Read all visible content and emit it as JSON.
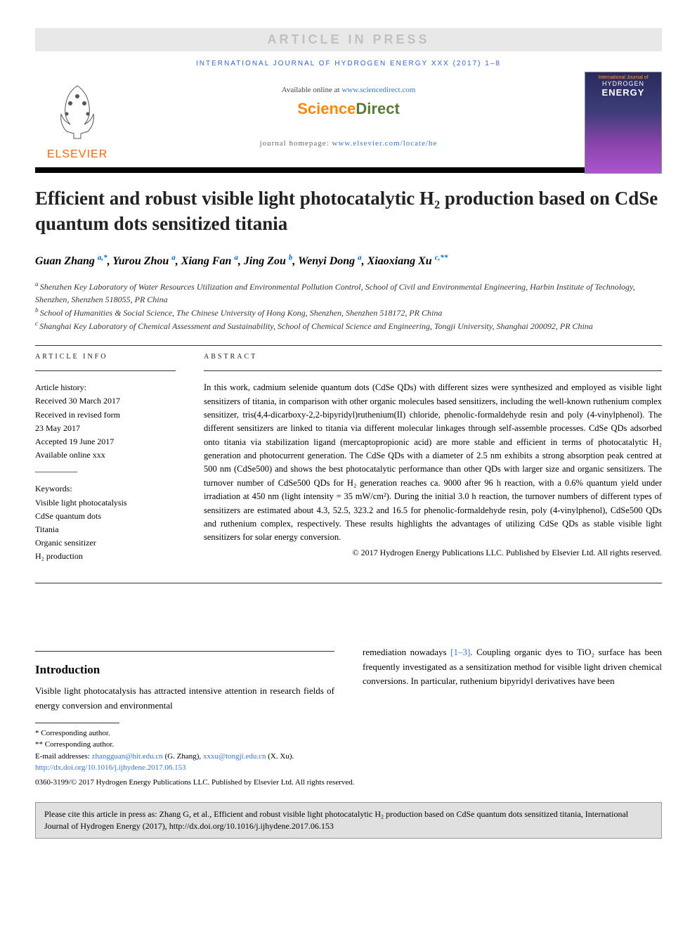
{
  "banner": {
    "text": "ARTICLE IN PRESS"
  },
  "journal_header": "INTERNATIONAL JOURNAL OF HYDROGEN ENERGY XXX (2017) 1–8",
  "elsevier": {
    "name": "ELSEVIER"
  },
  "cover": {
    "line1": "International Journal of",
    "line2": "HYDROGEN",
    "line3": "ENERGY"
  },
  "available": {
    "prefix": "Available online at ",
    "url": "www.sciencedirect.com"
  },
  "sciencedirect": {
    "science": "Science",
    "direct": "Direct"
  },
  "homepage": {
    "prefix": "journal homepage: ",
    "url": "www.elsevier.com/locate/he"
  },
  "title": "Efficient and robust visible light photocatalytic H₂ production based on CdSe quantum dots sensitized titania",
  "authors": [
    {
      "name": "Guan Zhang",
      "sup": "a,*"
    },
    {
      "name": "Yurou Zhou",
      "sup": "a"
    },
    {
      "name": "Xiang Fan",
      "sup": "a"
    },
    {
      "name": "Jing Zou",
      "sup": "b"
    },
    {
      "name": "Wenyi Dong",
      "sup": "a"
    },
    {
      "name": "Xiaoxiang Xu",
      "sup": "c,**"
    }
  ],
  "affiliations": [
    {
      "sup": "a",
      "text": "Shenzhen Key Laboratory of Water Resources Utilization and Environmental Pollution Control, School of Civil and Environmental Engineering, Harbin Institute of Technology, Shenzhen, Shenzhen 518055, PR China"
    },
    {
      "sup": "b",
      "text": "School of Humanities & Social Science, The Chinese University of Hong Kong, Shenzhen, Shenzhen 518172, PR China"
    },
    {
      "sup": "c",
      "text": "Shanghai Key Laboratory of Chemical Assessment and Sustainability, School of Chemical Science and Engineering, Tongji University, Shanghai 200092, PR China"
    }
  ],
  "info_label": "ARTICLE INFO",
  "abstract_label": "ABSTRACT",
  "history": {
    "heading": "Article history:",
    "received": "Received 30 March 2017",
    "revised": "Received in revised form",
    "revised_date": "23 May 2017",
    "accepted": "Accepted 19 June 2017",
    "online": "Available online xxx"
  },
  "keywords": {
    "heading": "Keywords:",
    "items": [
      "Visible light photocatalysis",
      "CdSe quantum dots",
      "Titania",
      "Organic sensitizer",
      "H₂ production"
    ]
  },
  "abstract": "In this work, cadmium selenide quantum dots (CdSe QDs) with different sizes were synthesized and employed as visible light sensitizers of titania, in comparison with other organic molecules based sensitizers, including the well-known ruthenium complex sensitizer, tris(4,4-dicarboxy-2,2-bipyridyl)ruthenium(II) chloride, phenolic-formaldehyde resin and poly (4-vinylphenol). The different sensitizers are linked to titania via different molecular linkages through self-assemble processes. CdSe QDs adsorbed onto titania via stabilization ligand (mercaptopropionic acid) are more stable and efficient in terms of photocatalytic H₂ generation and photocurrent generation. The CdSe QDs with a diameter of 2.5 nm exhibits a strong absorption peak centred at 500 nm (CdSe500) and shows the best photocatalytic performance than other QDs with larger size and organic sensitizers. The turnover number of CdSe500 QDs for H₂ generation reaches ca. 9000 after 96 h reaction, with a 0.6% quantum yield under irradiation at 450 nm (light intensity = 35 mW/cm²). During the initial 3.0 h reaction, the turnover numbers of different types of sensitizers are estimated about 4.3, 52.5, 323.2 and 16.5 for phenolic-formaldehyde resin, poly (4-vinylphenol), CdSe500 QDs and ruthenium complex, respectively. These results highlights the advantages of utilizing CdSe QDs as stable visible light sensitizers for solar energy conversion.",
  "copyright": "© 2017 Hydrogen Energy Publications LLC. Published by Elsevier Ltd. All rights reserved.",
  "intro_heading": "Introduction",
  "intro_left": "Visible light photocatalysis has attracted intensive attention in research fields of energy conversion and environmental",
  "intro_right": "remediation nowadays [1–3]. Coupling organic dyes to TiO₂ surface has been frequently investigated as a sensitization method for visible light driven chemical conversions. In particular, ruthenium bipyridyl derivatives have been",
  "footnotes": {
    "corr1": "* Corresponding author.",
    "corr2": "** Corresponding author.",
    "email_label": "E-mail addresses: ",
    "email1": "zhangguan@hit.edu.cn",
    "email1_name": " (G. Zhang), ",
    "email2": "xxxu@tongji.edu.cn",
    "email2_name": " (X. Xu).",
    "doi": "http://dx.doi.org/10.1016/j.ijhydene.2017.06.153",
    "issn": "0360-3199/© 2017 Hydrogen Energy Publications LLC. Published by Elsevier Ltd. All rights reserved."
  },
  "citebox": "Please cite this article in press as: Zhang G, et al., Efficient and robust visible light photocatalytic H₂ production based on CdSe quantum dots sensitized titania, International Journal of Hydrogen Energy (2017), http://dx.doi.org/10.1016/j.ijhydene.2017.06.153"
}
